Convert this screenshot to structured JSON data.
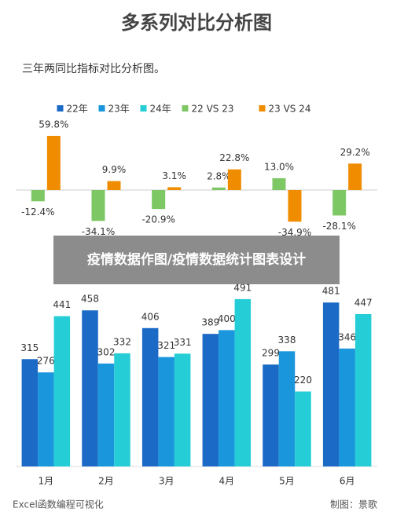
{
  "title": "多系列对比分析图",
  "subtitle": "三年两同比指标对比分析图。",
  "banner": "疫情数据作图/疫情数据统计图表设计",
  "footer": {
    "left": "Excel函数编程可视化",
    "right": "制图：景歌"
  },
  "chart_data": [
    {
      "type": "bar",
      "series": [
        {
          "name": "22 VS 23",
          "color": "#7dc765",
          "values": [
            -12.4,
            -34.1,
            -20.9,
            2.8,
            13.0,
            -28.1
          ],
          "value_labels": [
            "-12.4%",
            "-34.1%",
            "-20.9%",
            "2.8%",
            "13.0%",
            "-28.1%"
          ]
        },
        {
          "name": "23 VS 24",
          "color": "#f08c00",
          "values": [
            59.8,
            9.9,
            3.1,
            22.8,
            -34.9,
            29.2
          ],
          "value_labels": [
            "59.8%",
            "9.9%",
            "3.1%",
            "22.8%",
            "-34.9%",
            "29.2%"
          ]
        }
      ]
    },
    {
      "type": "bar",
      "categories": [
        "1月",
        "2月",
        "3月",
        "4月",
        "5月",
        "6月"
      ],
      "series": [
        {
          "name": "22年",
          "color": "#1a6ac6",
          "values": [
            315,
            458,
            406,
            389,
            299,
            481
          ]
        },
        {
          "name": "23年",
          "color": "#1a96dc",
          "values": [
            276,
            302,
            321,
            400,
            338,
            346
          ]
        },
        {
          "name": "24年",
          "color": "#25cdd6",
          "values": [
            441,
            332,
            331,
            491,
            220,
            447
          ]
        }
      ]
    }
  ]
}
